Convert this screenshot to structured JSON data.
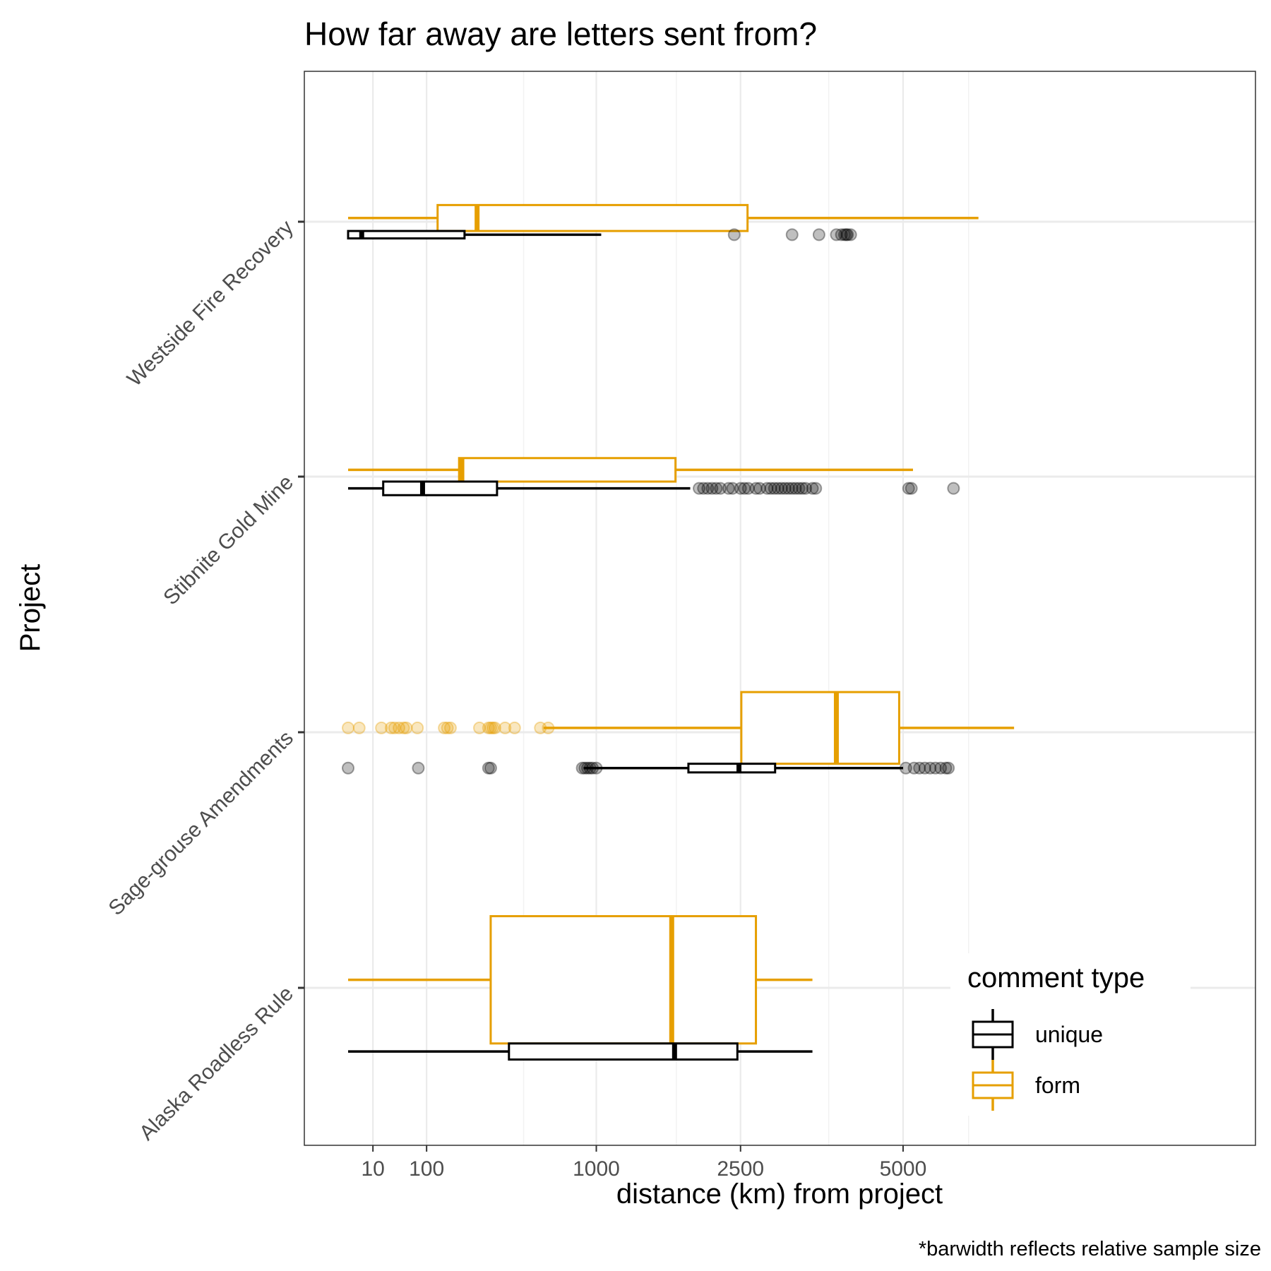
{
  "chart_data": {
    "type": "boxplot",
    "title": "How far away are letters sent from?",
    "xlabel": "distance (km) from project",
    "ylabel": "Project",
    "caption": "*barwidth reflects relative sample size",
    "x_scale": "square-root",
    "xlim": [
      0,
      7500
    ],
    "x_ticks": [
      10,
      100,
      1000,
      2500,
      5000
    ],
    "x_minor_gridlines": [
      500,
      1750,
      3750,
      6250
    ],
    "categories": [
      "Westside Fire Recovery",
      "Stibnite Gold Mine",
      "Sage-grouse Amendments",
      "Alaska Roadless Rule"
    ],
    "series": [
      {
        "name": "unique",
        "color": "#000000"
      },
      {
        "name": "form",
        "color": "#E69F00"
      }
    ],
    "boxes": [
      {
        "category": "Westside Fire Recovery",
        "series": "form",
        "width": 0.21,
        "min": 0,
        "q1": 130,
        "median": 270,
        "q3": 2590,
        "max": 6450,
        "outliers": []
      },
      {
        "category": "Westside Fire Recovery",
        "series": "unique",
        "width": 0.06,
        "min": 0,
        "q1": 0,
        "median": 3,
        "q3": 220,
        "max": 1040,
        "outliers": [
          2420,
          3200,
          3600,
          3870,
          3950,
          4000,
          4030,
          4050,
          4100
        ]
      },
      {
        "category": "Stibnite Gold Mine",
        "series": "form",
        "width": 0.19,
        "min": 0,
        "q1": 200,
        "median": 210,
        "q3": 1740,
        "max": 5180,
        "outliers": []
      },
      {
        "category": "Stibnite Gold Mine",
        "series": "unique",
        "width": 0.11,
        "min": 0,
        "q1": 20,
        "median": 90,
        "q3": 360,
        "max": 1900,
        "outliers": [
          2000,
          2050,
          2100,
          2150,
          2200,
          2250,
          2350,
          2400,
          2500,
          2550,
          2600,
          2700,
          2750,
          2850,
          2900,
          2950,
          3000,
          3050,
          3100,
          3150,
          3200,
          3250,
          3300,
          3350,
          3400,
          3500,
          3550,
          5100,
          5150,
          5950
        ]
      },
      {
        "category": "Sage-grouse Amendments",
        "series": "form",
        "width": 0.58,
        "min": 620,
        "q1": 2510,
        "median": 3870,
        "q3": 4930,
        "max": 7200,
        "outliers": [
          0,
          2,
          18,
          30,
          35,
          42,
          50,
          55,
          78,
          150,
          160,
          170,
          280,
          320,
          330,
          340,
          350,
          400,
          450,
          600,
          650
        ]
      },
      {
        "category": "Sage-grouse Amendments",
        "series": "unique",
        "width": 0.07,
        "min": 900,
        "q1": 1880,
        "median": 2480,
        "q3": 2960,
        "max": 5000,
        "outliers": [
          0,
          80,
          320,
          330,
          890,
          910,
          930,
          950,
          970,
          1000,
          5050,
          5200,
          5300,
          5400,
          5500,
          5600,
          5700,
          5800,
          5850
        ]
      },
      {
        "category": "Alaska Roadless Rule",
        "series": "form",
        "width": 1.03,
        "min": 0,
        "q1": 330,
        "median": 1700,
        "q3": 2700,
        "max": 3500,
        "outliers": []
      },
      {
        "category": "Alaska Roadless Rule",
        "series": "unique",
        "width": 0.13,
        "min": 0,
        "q1": 420,
        "median": 1730,
        "q3": 2460,
        "max": 3500,
        "outliers": []
      }
    ],
    "grid": true,
    "legend": {
      "title": "comment type",
      "position": "bottom-right inside",
      "entries": [
        "unique",
        "form"
      ]
    }
  }
}
